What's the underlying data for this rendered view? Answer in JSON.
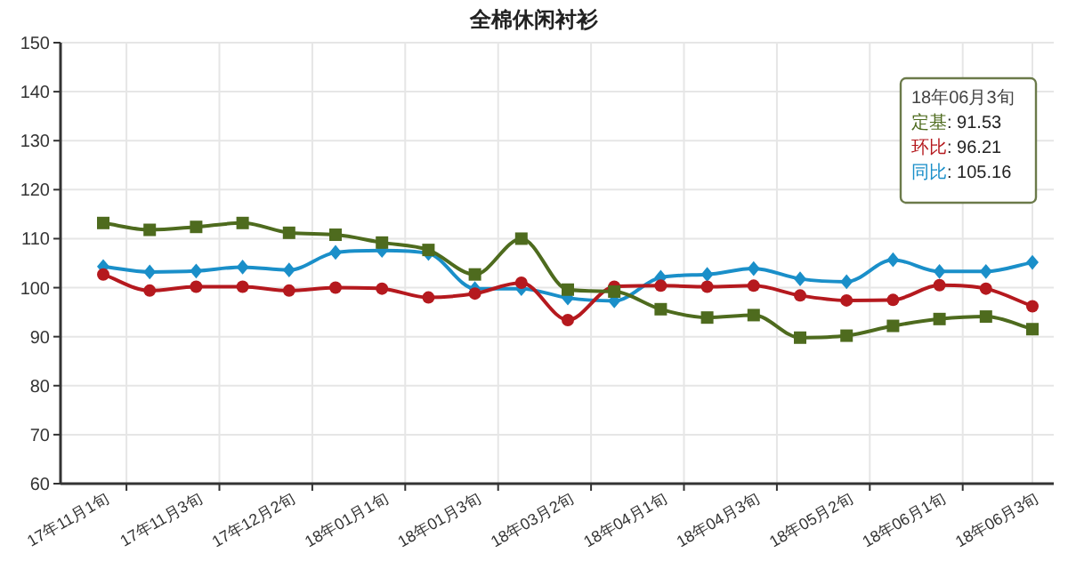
{
  "chart_data": {
    "type": "line",
    "title": "全棉休闲衬衫",
    "categories": [
      "17年11月1旬",
      null,
      "17年11月3旬",
      null,
      "17年12月2旬",
      null,
      "18年01月1旬",
      null,
      "18年01月3旬",
      null,
      "18年03月2旬",
      null,
      "18年04月1旬",
      null,
      "18年04月3旬",
      null,
      "18年05月2旬",
      null,
      "18年06月1旬",
      null,
      "18年06月3旬"
    ],
    "series": [
      {
        "color": "#4e6b1e",
        "marker": "square",
        "values": [
          113.2,
          111.8,
          112.4,
          113.2,
          111.2,
          110.8,
          109.2,
          107.7,
          102.7,
          110.0,
          99.6,
          99.2,
          95.6,
          93.9,
          94.4,
          89.8,
          90.2,
          92.2,
          93.6,
          94.1,
          91.53
        ]
      },
      {
        "color": "#b5191e",
        "marker": "circle",
        "values": [
          102.7,
          99.4,
          100.2,
          100.2,
          99.4,
          100.0,
          99.8,
          98.0,
          98.8,
          101.0,
          93.4,
          100.2,
          100.4,
          100.2,
          100.4,
          98.4,
          97.4,
          97.5,
          100.5,
          99.8,
          96.21
        ]
      },
      {
        "color": "#1a8fc9",
        "marker": "diamond",
        "values": [
          104.3,
          103.2,
          103.4,
          104.2,
          103.6,
          107.2,
          107.6,
          107.0,
          99.8,
          99.8,
          97.9,
          97.3,
          102.1,
          102.7,
          103.9,
          101.8,
          101.2,
          105.7,
          103.3,
          103.3,
          105.16
        ]
      }
    ],
    "annotations": [
      "18年06月3旬",
      "定基: 91.53",
      "环比: 96.21",
      "同比: 105.16"
    ],
    "ylim": [
      60,
      150
    ],
    "yticks": [
      60,
      70,
      80,
      90,
      100,
      110,
      120,
      130,
      140,
      150
    ],
    "grid": true,
    "legend": false
  }
}
